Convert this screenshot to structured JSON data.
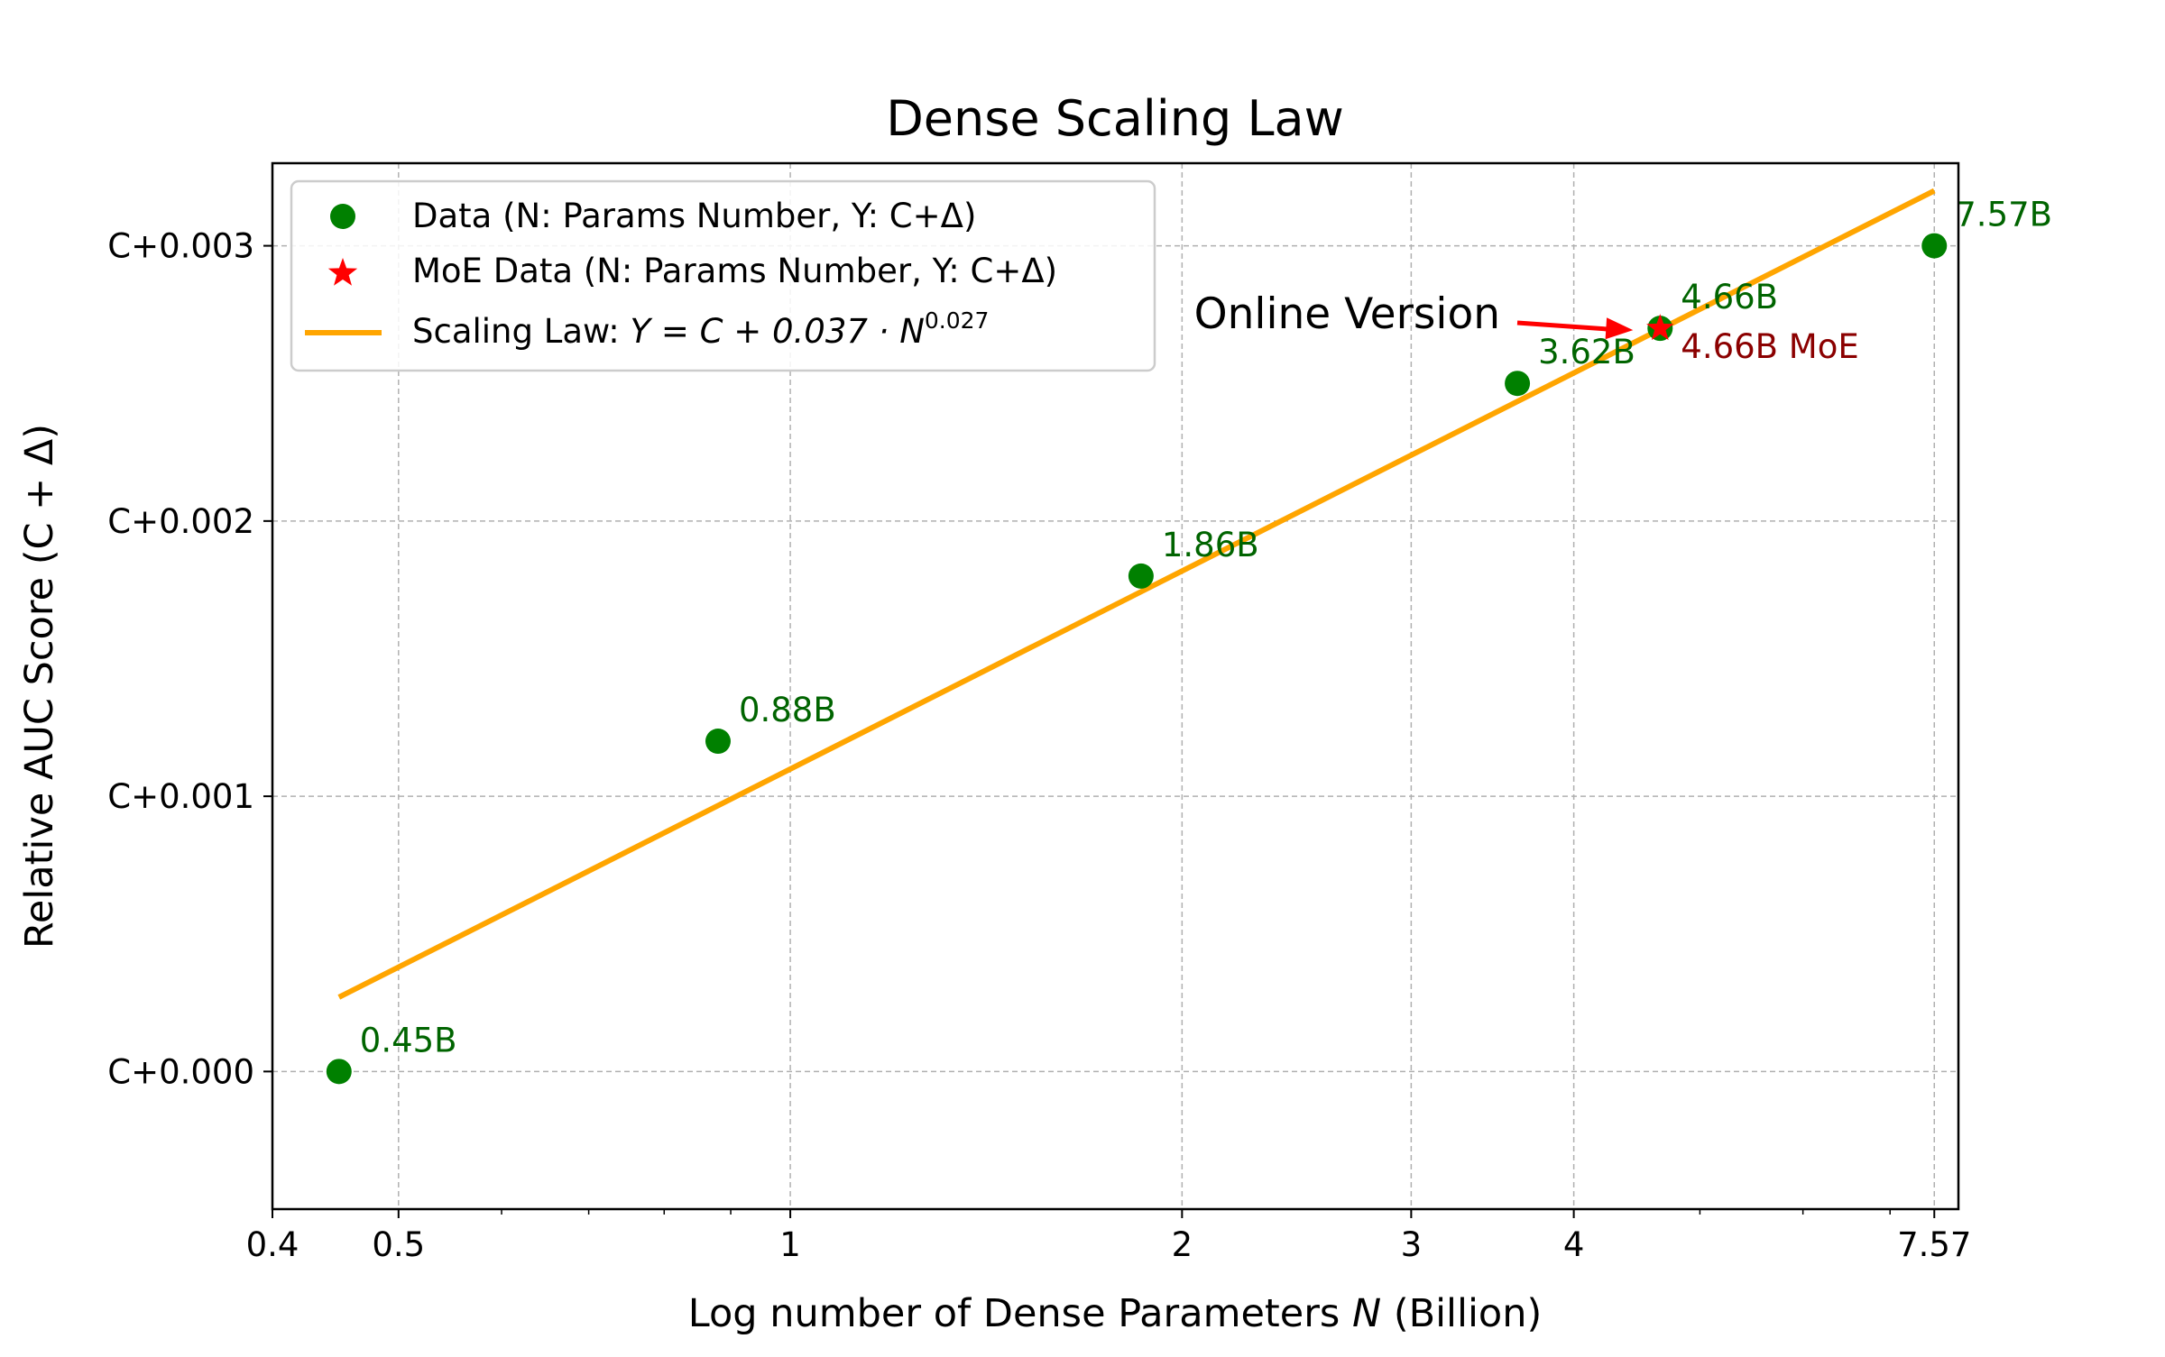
{
  "chart_data": {
    "type": "scatter",
    "title": "Dense Scaling Law",
    "xlabel_parts": [
      "Log number of Dense Parameters ",
      "N",
      " (Billion)"
    ],
    "ylabel": "Relative AUC Score (C + Δ)",
    "xscale": "log",
    "xlim": [
      0.4,
      7.9
    ],
    "ylim": [
      -0.0005,
      0.0033
    ],
    "grid": true,
    "legend_position": "top-left",
    "x_ticks": [
      {
        "value": 0.4,
        "label": "0.4"
      },
      {
        "value": 0.5,
        "label": "0.5"
      },
      {
        "value": 1,
        "label": "1"
      },
      {
        "value": 2,
        "label": "2"
      },
      {
        "value": 3,
        "label": "3"
      },
      {
        "value": 4,
        "label": "4"
      },
      {
        "value": 7.57,
        "label": "7.57"
      }
    ],
    "x_minor_ticks": [
      0.6,
      0.7,
      0.8,
      0.9,
      5,
      6,
      7
    ],
    "y_ticks": [
      {
        "value": 0.0,
        "label": "C+0.000"
      },
      {
        "value": 0.001,
        "label": "C+0.001"
      },
      {
        "value": 0.002,
        "label": "C+0.002"
      },
      {
        "value": 0.003,
        "label": "C+0.003"
      }
    ],
    "series": [
      {
        "name": "Data (N: Params Number, Y: C+Δ)",
        "kind": "scatter-circle",
        "color": "#008000",
        "label_color": "#006400",
        "points": [
          {
            "x": 0.45,
            "y": 0.0,
            "label": "0.45B"
          },
          {
            "x": 0.88,
            "y": 0.0012,
            "label": "0.88B"
          },
          {
            "x": 1.86,
            "y": 0.0018,
            "label": "1.86B"
          },
          {
            "x": 3.62,
            "y": 0.0025,
            "label": "3.62B"
          },
          {
            "x": 4.66,
            "y": 0.0027,
            "label": "4.66B"
          },
          {
            "x": 7.57,
            "y": 0.003,
            "label": "7.57B"
          }
        ]
      },
      {
        "name": "MoE Data (N: Params Number, Y: C+Δ)",
        "kind": "scatter-star",
        "color": "#ff0000",
        "label_color": "#8b0000",
        "points": [
          {
            "x": 4.66,
            "y": 0.0027,
            "label": "4.66B MoE"
          }
        ]
      },
      {
        "name_parts": [
          "Scaling Law: ",
          "Y = C + 0.037 · N",
          "0.027"
        ],
        "kind": "line",
        "color": "#ffa500",
        "x": [
          0.45,
          7.57
        ],
        "y": [
          0.00027,
          0.0032
        ]
      }
    ],
    "annotation": {
      "text": "Online Version",
      "target": {
        "x": 4.66,
        "y": 0.0027
      },
      "arrow_color": "#ff0000"
    }
  }
}
